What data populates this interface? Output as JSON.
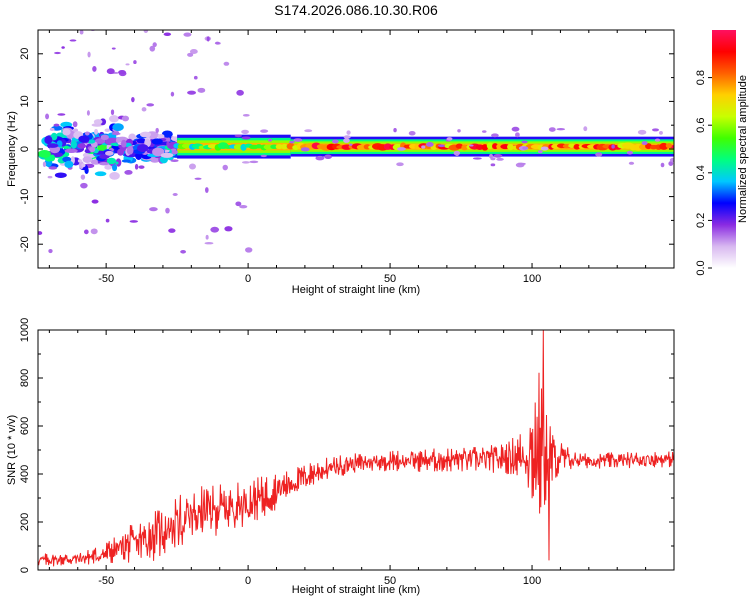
{
  "title": "S174.2026.086.10.30.R06",
  "chart_data": [
    {
      "type": "heatmap",
      "name": "spectrogram",
      "xlabel": "Height of straight line (km)",
      "ylabel": "Frequency (Hz)",
      "xlim": [
        -74,
        150
      ],
      "ylim": [
        -25,
        25
      ],
      "xticks": [
        -50,
        0,
        50,
        100
      ],
      "yticks": [
        -20,
        -10,
        0,
        10,
        20
      ],
      "colorbar": {
        "label": "Normalized spectral amplitude",
        "range": [
          0,
          1
        ],
        "ticks": [
          0.0,
          0.2,
          0.4,
          0.6,
          0.8
        ],
        "tick_labels": [
          "0.0",
          "0.2",
          "0.4",
          "0.6",
          "0.8"
        ],
        "colormap": [
          "#ffffff",
          "#d8b8f0",
          "#8a2be2",
          "#0000ff",
          "#00c8ff",
          "#00ff80",
          "#40ff00",
          "#c8ff00",
          "#ffd000",
          "#ff6000",
          "#ff0000",
          "#ff1060"
        ]
      },
      "ridge_frequency_hz": 0.5,
      "ridge_segments": [
        {
          "x_start": -72,
          "x_end": -45,
          "level": 0.35,
          "spread_hz": 5
        },
        {
          "x_start": -45,
          "x_end": -25,
          "level": 0.3,
          "spread_hz": 2.5
        },
        {
          "x_start": -25,
          "x_end": 15,
          "level": 0.7,
          "spread_hz": 1.2
        },
        {
          "x_start": 15,
          "x_end": 150,
          "level": 0.98,
          "spread_hz": 1
        }
      ]
    },
    {
      "type": "line",
      "name": "snr",
      "xlabel": "Height of straight line (km)",
      "ylabel": "SNR (10 * v/v)",
      "xlim": [
        -74,
        150
      ],
      "ylim": [
        0,
        1000
      ],
      "xticks": [
        -50,
        0,
        50,
        100
      ],
      "yticks": [
        0,
        200,
        400,
        600,
        800,
        1000
      ],
      "color": "#ee2222",
      "trend": {
        "x": [
          -74,
          -60,
          -52,
          -45,
          -35,
          -25,
          -15,
          -5,
          5,
          15,
          25,
          35,
          45,
          55,
          65,
          75,
          85,
          95,
          100,
          104,
          106,
          110,
          120,
          130,
          140,
          150
        ],
        "y": [
          40,
          45,
          60,
          90,
          130,
          190,
          240,
          260,
          300,
          360,
          410,
          440,
          450,
          455,
          455,
          460,
          460,
          470,
          480,
          500,
          460,
          460,
          455,
          455,
          460,
          460
        ]
      },
      "noise_amplitude": {
        "x": [
          -74,
          -55,
          -45,
          -30,
          -10,
          10,
          20,
          40,
          90,
          98,
          102,
          108,
          115,
          150
        ],
        "y": [
          20,
          25,
          50,
          90,
          80,
          60,
          40,
          30,
          45,
          90,
          260,
          70,
          25,
          25
        ]
      },
      "peak": {
        "x": 104,
        "y": 1000
      },
      "trough": {
        "x": 106,
        "y": 40
      }
    }
  ]
}
